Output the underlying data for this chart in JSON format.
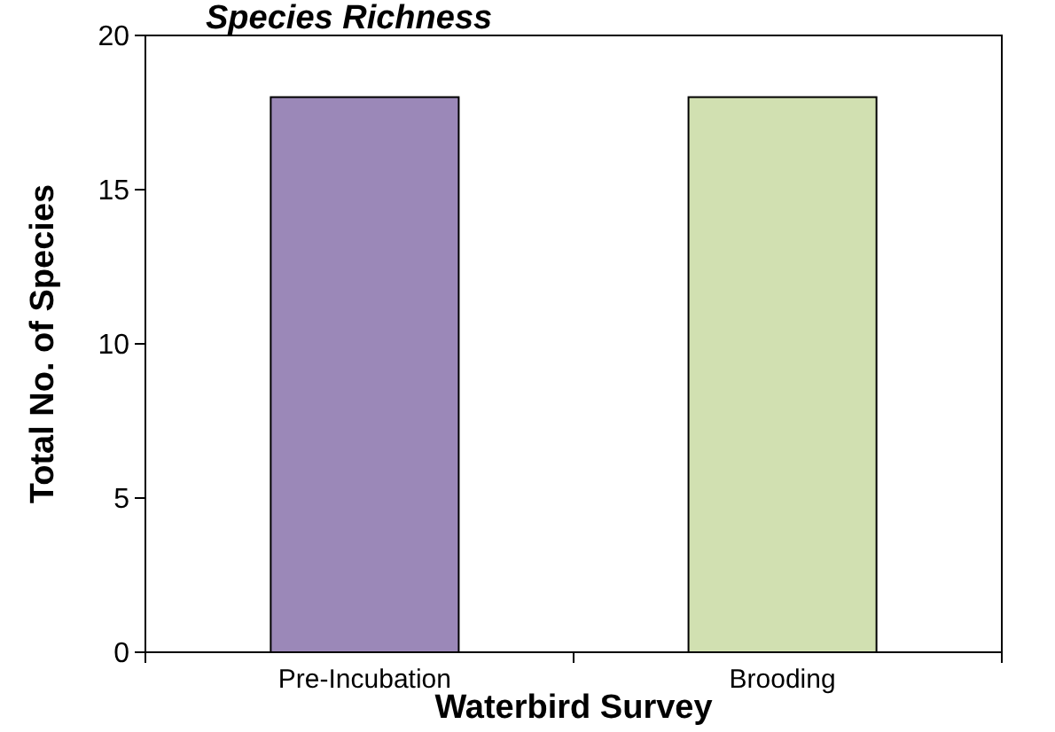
{
  "chart_data": {
    "type": "bar",
    "title": "Species Richness",
    "xlabel": "Waterbird Survey",
    "ylabel": "Total No. of Species",
    "categories": [
      "Pre-Incubation",
      "Brooding"
    ],
    "values": [
      18,
      18
    ],
    "colors": [
      "#9b88b8",
      "#d1e0b1"
    ],
    "ylim": [
      0,
      20
    ],
    "yticks": [
      0,
      5,
      10,
      15,
      20
    ],
    "grid": false
  }
}
